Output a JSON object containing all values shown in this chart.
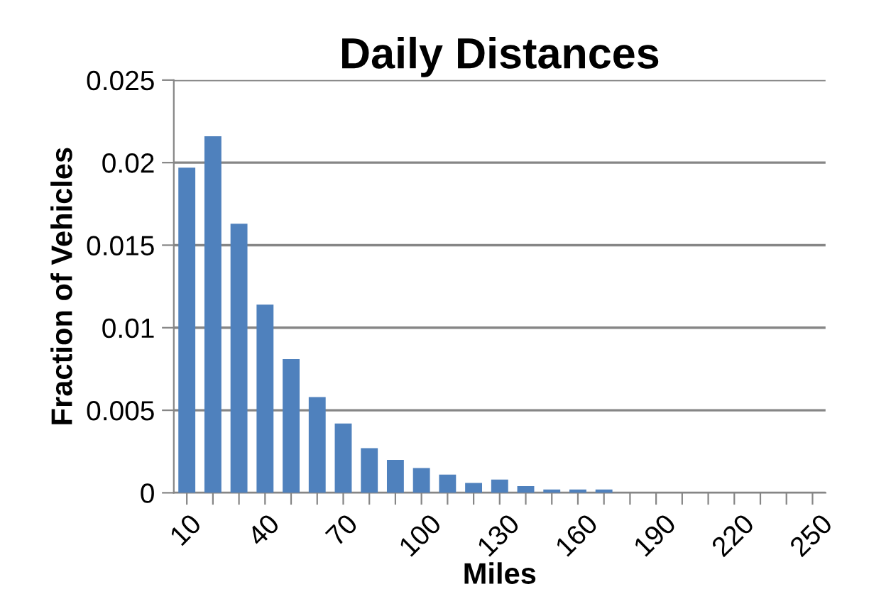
{
  "chart_data": {
    "type": "bar",
    "title": "Daily Distances",
    "xlabel": "Miles",
    "ylabel": "Fraction of Vehicles",
    "categories": [
      "10",
      null,
      null,
      "40",
      null,
      null,
      "70",
      null,
      null,
      "100",
      null,
      null,
      "130",
      null,
      null,
      "160",
      null,
      null,
      "190",
      null,
      null,
      "220",
      null,
      null,
      "250"
    ],
    "series": [
      {
        "color": "#4f81bd",
        "values": [
          0.0197,
          0.0216,
          0.0163,
          0.0114,
          0.0081,
          0.0058,
          0.0042,
          0.0027,
          0.002,
          0.0015,
          0.0011,
          0.0006,
          0.0008,
          0.0004,
          0.0002,
          0.0002,
          0.0002,
          0,
          0,
          0,
          0,
          0,
          0,
          0,
          0
        ]
      }
    ],
    "ylim": [
      0,
      0.025
    ],
    "yticks": [
      {
        "value": 0,
        "label": "0"
      },
      0.005,
      0.01,
      0.015,
      0.02,
      0.025
    ],
    "grid": "y",
    "legend": false
  }
}
